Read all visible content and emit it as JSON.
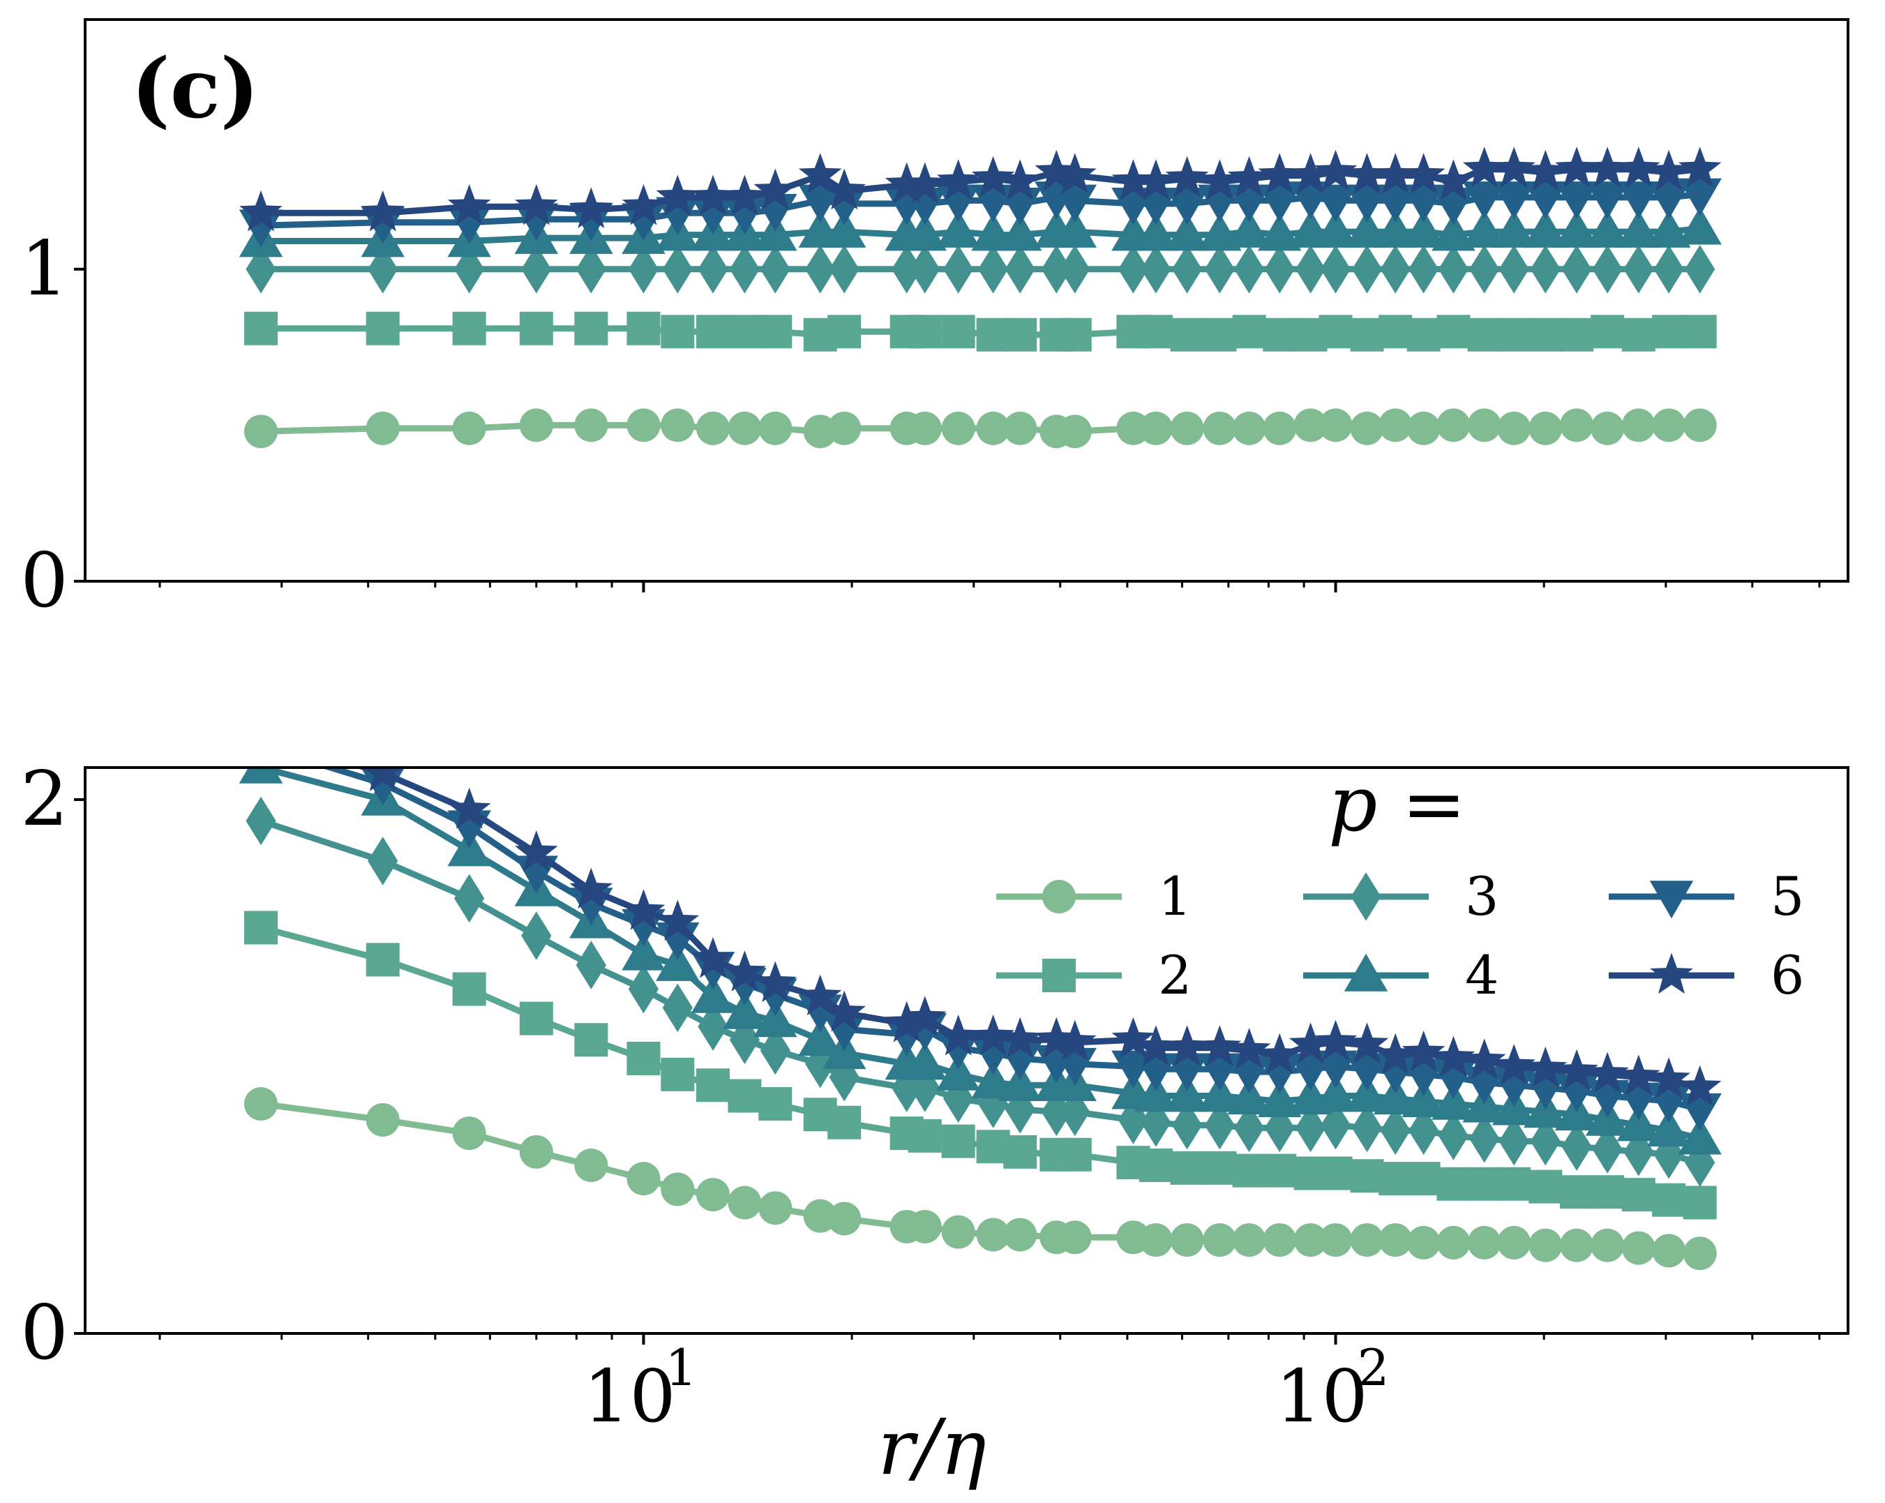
{
  "panel_label": "(c)",
  "colors": {
    "p1": "#80bb92",
    "p2": "#5aa792",
    "p3": "#43928f",
    "p4": "#2e7b8c",
    "p5": "#22608a",
    "p6": "#26467f",
    "axis": "#000000"
  },
  "x": [
    2.8,
    4.2,
    5.6,
    7.0,
    8.4,
    10.0,
    11.2,
    12.6,
    14.0,
    15.5,
    18.0,
    19.5,
    24.0,
    25.5,
    28.5,
    32.0,
    35.0,
    39.5,
    42.0,
    51.0,
    55.0,
    61.0,
    68.0,
    75.0,
    83.0,
    92.0,
    100.0,
    111.0,
    122.0,
    134.0,
    148.0,
    164.0,
    181.0,
    201.0,
    223.0,
    247.0,
    274.0,
    303.0,
    336.0
  ],
  "chart_data": [
    {
      "type": "line",
      "title": "",
      "xlabel": "",
      "ylabel": "",
      "xscale": "log",
      "xlim": [
        1.56,
        550
      ],
      "ylim": [
        0,
        1.8
      ],
      "yticks": [
        0,
        1
      ],
      "ytick_labels": [
        "0",
        "1"
      ],
      "series": [
        {
          "name": "1",
          "marker": "circle",
          "values": [
            0.48,
            0.49,
            0.49,
            0.5,
            0.5,
            0.5,
            0.5,
            0.49,
            0.49,
            0.49,
            0.48,
            0.49,
            0.49,
            0.49,
            0.49,
            0.49,
            0.49,
            0.48,
            0.48,
            0.49,
            0.49,
            0.49,
            0.49,
            0.49,
            0.49,
            0.5,
            0.5,
            0.49,
            0.5,
            0.49,
            0.5,
            0.5,
            0.49,
            0.49,
            0.5,
            0.49,
            0.5,
            0.5,
            0.5
          ]
        },
        {
          "name": "2",
          "marker": "square",
          "values": [
            0.81,
            0.81,
            0.81,
            0.81,
            0.81,
            0.81,
            0.8,
            0.8,
            0.8,
            0.8,
            0.79,
            0.8,
            0.8,
            0.8,
            0.8,
            0.79,
            0.79,
            0.79,
            0.79,
            0.8,
            0.8,
            0.79,
            0.79,
            0.8,
            0.79,
            0.79,
            0.8,
            0.79,
            0.8,
            0.79,
            0.8,
            0.79,
            0.79,
            0.79,
            0.79,
            0.8,
            0.79,
            0.8,
            0.8
          ]
        },
        {
          "name": "3",
          "marker": "diamond",
          "values": [
            1.0,
            1.0,
            1.0,
            1.0,
            1.0,
            1.0,
            1.0,
            1.0,
            1.0,
            1.0,
            1.0,
            1.0,
            1.0,
            1.0,
            1.0,
            1.0,
            1.0,
            1.0,
            1.0,
            1.0,
            1.0,
            1.0,
            1.0,
            1.0,
            1.0,
            1.0,
            1.0,
            1.0,
            1.0,
            1.0,
            1.0,
            1.0,
            1.0,
            1.0,
            1.0,
            1.0,
            1.0,
            1.0,
            1.0
          ]
        },
        {
          "name": "4",
          "marker": "triangle-up",
          "values": [
            1.09,
            1.09,
            1.09,
            1.1,
            1.1,
            1.1,
            1.11,
            1.11,
            1.11,
            1.11,
            1.12,
            1.12,
            1.11,
            1.11,
            1.12,
            1.11,
            1.11,
            1.12,
            1.12,
            1.11,
            1.11,
            1.11,
            1.11,
            1.12,
            1.11,
            1.12,
            1.12,
            1.12,
            1.12,
            1.12,
            1.11,
            1.12,
            1.12,
            1.12,
            1.12,
            1.12,
            1.12,
            1.12,
            1.13
          ]
        },
        {
          "name": "5",
          "marker": "triangle-down",
          "values": [
            1.14,
            1.15,
            1.15,
            1.16,
            1.16,
            1.16,
            1.18,
            1.18,
            1.18,
            1.19,
            1.22,
            1.21,
            1.21,
            1.21,
            1.22,
            1.22,
            1.21,
            1.23,
            1.22,
            1.21,
            1.21,
            1.21,
            1.22,
            1.22,
            1.22,
            1.23,
            1.22,
            1.22,
            1.22,
            1.22,
            1.21,
            1.23,
            1.23,
            1.23,
            1.23,
            1.23,
            1.23,
            1.23,
            1.24
          ]
        },
        {
          "name": "6",
          "marker": "star",
          "values": [
            1.18,
            1.18,
            1.2,
            1.2,
            1.19,
            1.2,
            1.23,
            1.23,
            1.23,
            1.25,
            1.3,
            1.25,
            1.27,
            1.27,
            1.28,
            1.29,
            1.28,
            1.31,
            1.3,
            1.28,
            1.28,
            1.29,
            1.28,
            1.29,
            1.3,
            1.3,
            1.31,
            1.3,
            1.3,
            1.3,
            1.28,
            1.32,
            1.32,
            1.31,
            1.32,
            1.32,
            1.32,
            1.31,
            1.32
          ]
        }
      ]
    },
    {
      "type": "line",
      "title": "",
      "xlabel": "r/η",
      "ylabel": "",
      "xscale": "log",
      "xlim": [
        1.56,
        550
      ],
      "ylim": [
        0,
        2.12
      ],
      "yticks": [
        0,
        2
      ],
      "ytick_labels": [
        "0",
        "2"
      ],
      "xticks": [
        10,
        100
      ],
      "xtick_labels": [
        {
          "base": "10",
          "exp": "1"
        },
        {
          "base": "10",
          "exp": "2"
        }
      ],
      "legend": {
        "title": "p =",
        "location": "upper right",
        "columns": 3
      },
      "series": [
        {
          "name": "1",
          "marker": "circle",
          "values": [
            0.86,
            0.8,
            0.75,
            0.68,
            0.63,
            0.58,
            0.54,
            0.52,
            0.49,
            0.47,
            0.44,
            0.43,
            0.4,
            0.4,
            0.38,
            0.37,
            0.37,
            0.36,
            0.36,
            0.36,
            0.35,
            0.35,
            0.35,
            0.35,
            0.35,
            0.35,
            0.35,
            0.35,
            0.35,
            0.34,
            0.34,
            0.34,
            0.34,
            0.33,
            0.33,
            0.33,
            0.32,
            0.31,
            0.3
          ]
        },
        {
          "name": "2",
          "marker": "square",
          "values": [
            1.52,
            1.4,
            1.29,
            1.18,
            1.1,
            1.03,
            0.97,
            0.93,
            0.89,
            0.86,
            0.82,
            0.79,
            0.75,
            0.74,
            0.72,
            0.7,
            0.68,
            0.67,
            0.67,
            0.64,
            0.63,
            0.62,
            0.62,
            0.61,
            0.61,
            0.6,
            0.6,
            0.59,
            0.58,
            0.58,
            0.56,
            0.56,
            0.56,
            0.55,
            0.53,
            0.53,
            0.52,
            0.5,
            0.49
          ]
        },
        {
          "name": "3",
          "marker": "diamond",
          "values": [
            1.92,
            1.77,
            1.63,
            1.49,
            1.38,
            1.29,
            1.22,
            1.15,
            1.1,
            1.06,
            1.01,
            0.96,
            0.92,
            0.92,
            0.88,
            0.86,
            0.84,
            0.83,
            0.83,
            0.8,
            0.79,
            0.78,
            0.78,
            0.77,
            0.77,
            0.77,
            0.78,
            0.77,
            0.76,
            0.76,
            0.74,
            0.73,
            0.72,
            0.72,
            0.7,
            0.69,
            0.68,
            0.67,
            0.64
          ]
        },
        {
          "name": "4",
          "marker": "triangle-up",
          "values": [
            2.12,
            2.0,
            1.81,
            1.66,
            1.54,
            1.42,
            1.38,
            1.26,
            1.2,
            1.17,
            1.1,
            1.05,
            1.01,
            1.01,
            0.97,
            0.94,
            0.93,
            0.93,
            0.93,
            0.9,
            0.89,
            0.89,
            0.89,
            0.88,
            0.87,
            0.88,
            0.89,
            0.89,
            0.88,
            0.87,
            0.86,
            0.85,
            0.84,
            0.83,
            0.82,
            0.8,
            0.78,
            0.76,
            0.73
          ]
        },
        {
          "name": "5",
          "marker": "triangle-down",
          "values": [
            2.2,
            2.06,
            1.9,
            1.73,
            1.61,
            1.53,
            1.48,
            1.37,
            1.31,
            1.27,
            1.21,
            1.14,
            1.12,
            1.14,
            1.07,
            1.05,
            1.03,
            1.02,
            1.01,
            1.0,
            0.99,
            0.99,
            0.99,
            0.98,
            0.98,
            0.99,
            1.0,
            0.99,
            0.98,
            0.97,
            0.96,
            0.94,
            0.93,
            0.92,
            0.91,
            0.89,
            0.88,
            0.87,
            0.84
          ]
        },
        {
          "name": "6",
          "marker": "star",
          "values": [
            2.24,
            2.1,
            1.96,
            1.8,
            1.66,
            1.58,
            1.54,
            1.4,
            1.35,
            1.31,
            1.26,
            1.2,
            1.16,
            1.18,
            1.11,
            1.11,
            1.1,
            1.1,
            1.09,
            1.1,
            1.07,
            1.07,
            1.07,
            1.06,
            1.04,
            1.08,
            1.09,
            1.08,
            1.04,
            1.05,
            1.03,
            1.02,
            1.0,
            0.99,
            0.98,
            0.97,
            0.96,
            0.95,
            0.92
          ]
        }
      ]
    }
  ]
}
